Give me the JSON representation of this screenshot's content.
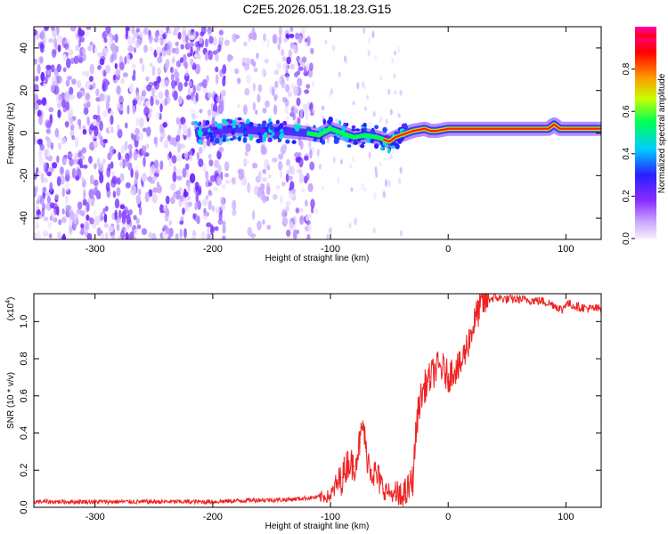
{
  "title": "C2E5.2026.051.18.23.G15",
  "colors": {
    "snr_line": "#ee2222",
    "colormap": [
      "#ffffff",
      "#b18cff",
      "#7a1fff",
      "#2a1fff",
      "#00ccff",
      "#00ff55",
      "#c8ff00",
      "#ff9900",
      "#ff0000",
      "#ff00bb"
    ]
  },
  "chart_data": [
    {
      "type": "heatmap",
      "name": "spectrogram",
      "xlabel": "Height of straight line (km)",
      "ylabel": "Frequency (Hz)",
      "xlim": [
        -352,
        130
      ],
      "ylim": [
        -50,
        50
      ],
      "x_ticks": [
        -300,
        -200,
        -100,
        0,
        100
      ],
      "y_ticks": [
        -40,
        -20,
        0,
        20,
        40
      ],
      "colorbar": {
        "label": "Normalized spectral amplitude",
        "range": [
          0,
          1
        ],
        "ticks": [
          "0.0",
          "0.2",
          "0.4",
          "0.6",
          "0.8"
        ]
      },
      "features": {
        "noise_region_x": [
          -352,
          -115
        ],
        "noise_gap_x": [
          -190,
          -140
        ],
        "signal_track": {
          "x": [
            -215,
            -200,
            -180,
            -160,
            -140,
            -120,
            -110,
            -100,
            -90,
            -80,
            -70,
            -60,
            -50,
            -45,
            -40,
            -35,
            -30,
            -20,
            -15,
            -10,
            0,
            20,
            60,
            85,
            90,
            95,
            100,
            130
          ],
          "hz": [
            0,
            1,
            2,
            1,
            1,
            0,
            -1,
            2,
            0,
            -2,
            -1,
            -2,
            -4,
            -2,
            -1,
            0,
            1,
            2,
            1,
            1,
            2,
            2,
            2,
            2,
            4,
            2,
            2,
            2
          ]
        }
      }
    },
    {
      "type": "line",
      "name": "snr",
      "xlabel": "Height of straight line (km)",
      "ylabel": "SNR (10 * v/v)",
      "y_multiplier": "(x10",
      "y_multiplier_exp": "4",
      "multiplier_suffix": ")",
      "xlim": [
        -352,
        130
      ],
      "ylim": [
        0,
        1.15
      ],
      "x_ticks": [
        -300,
        -200,
        -100,
        0,
        100
      ],
      "y_ticks": [
        "0.0",
        "0.2",
        "0.4",
        "0.6",
        "0.8",
        "1.0"
      ],
      "series": [
        {
          "name": "SNR",
          "x": [
            -352,
            -300,
            -250,
            -200,
            -160,
            -140,
            -120,
            -100,
            -95,
            -90,
            -85,
            -80,
            -75,
            -72,
            -70,
            -65,
            -60,
            -55,
            -50,
            -45,
            -40,
            -35,
            -30,
            -28,
            -25,
            -20,
            -15,
            -10,
            -5,
            0,
            5,
            10,
            15,
            20,
            25,
            30,
            35,
            40,
            50,
            60,
            80,
            90,
            97,
            100,
            110,
            120,
            130
          ],
          "values": [
            0.03,
            0.03,
            0.03,
            0.03,
            0.04,
            0.04,
            0.05,
            0.06,
            0.12,
            0.16,
            0.25,
            0.22,
            0.35,
            0.45,
            0.3,
            0.2,
            0.16,
            0.1,
            0.08,
            0.06,
            0.05,
            0.08,
            0.15,
            0.35,
            0.55,
            0.65,
            0.7,
            0.75,
            0.75,
            0.7,
            0.75,
            0.75,
            0.85,
            0.95,
            1.05,
            1.1,
            1.12,
            1.13,
            1.12,
            1.12,
            1.11,
            1.09,
            1.06,
            1.1,
            1.08,
            1.07,
            1.07
          ]
        }
      ]
    }
  ]
}
